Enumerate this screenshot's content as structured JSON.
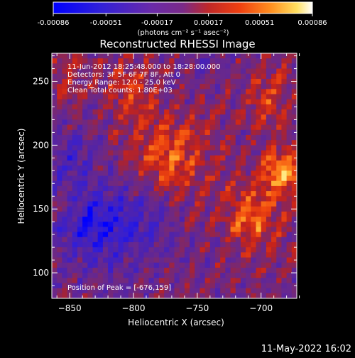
{
  "colorbar": {
    "tick_labels": [
      "-0.00086",
      "-0.00051",
      "-0.00017",
      "0.00017",
      "0.00051",
      "0.00086"
    ],
    "tick_values": [
      -0.00086,
      -0.00051,
      -0.00017,
      0.00017,
      0.00051,
      0.00086
    ],
    "unit_label": "(photons cm⁻² s⁻¹ asec⁻²)"
  },
  "chart_data": {
    "type": "heatmap",
    "title": "Reconstructed RHESSI Image",
    "xlabel": "Heliocentric X (arcsec)",
    "ylabel": "Heliocentric Y (arcsec)",
    "xlim": [
      -864,
      -672
    ],
    "ylim": [
      80,
      272
    ],
    "xticks": [
      -850,
      -800,
      -750,
      -700
    ],
    "yticks": [
      100,
      150,
      200,
      250
    ],
    "value_range": [
      -0.00086,
      0.00086
    ],
    "colormap": [
      "#0000ff",
      "#3b1ccc",
      "#5a2a9a",
      "#7b2a70",
      "#b02828",
      "#e03010",
      "#ff6010",
      "#ffb030",
      "#ffff70",
      "#ffffff"
    ],
    "peak": [
      -676,
      159
    ],
    "annotations": [
      "11-Jun-2012 18:25:48.000 to 18:28:00.000",
      "Detectors: 3F 5F 6F 7F 8F, Att 0",
      "Energy Range: 12.0 - 25.0 keV",
      "Clean    Total counts: 1.80E+03"
    ],
    "peak_label": "Position of Peak = [-676,159]"
  },
  "footer": {
    "timestamp": "11-May-2022 16:02"
  }
}
